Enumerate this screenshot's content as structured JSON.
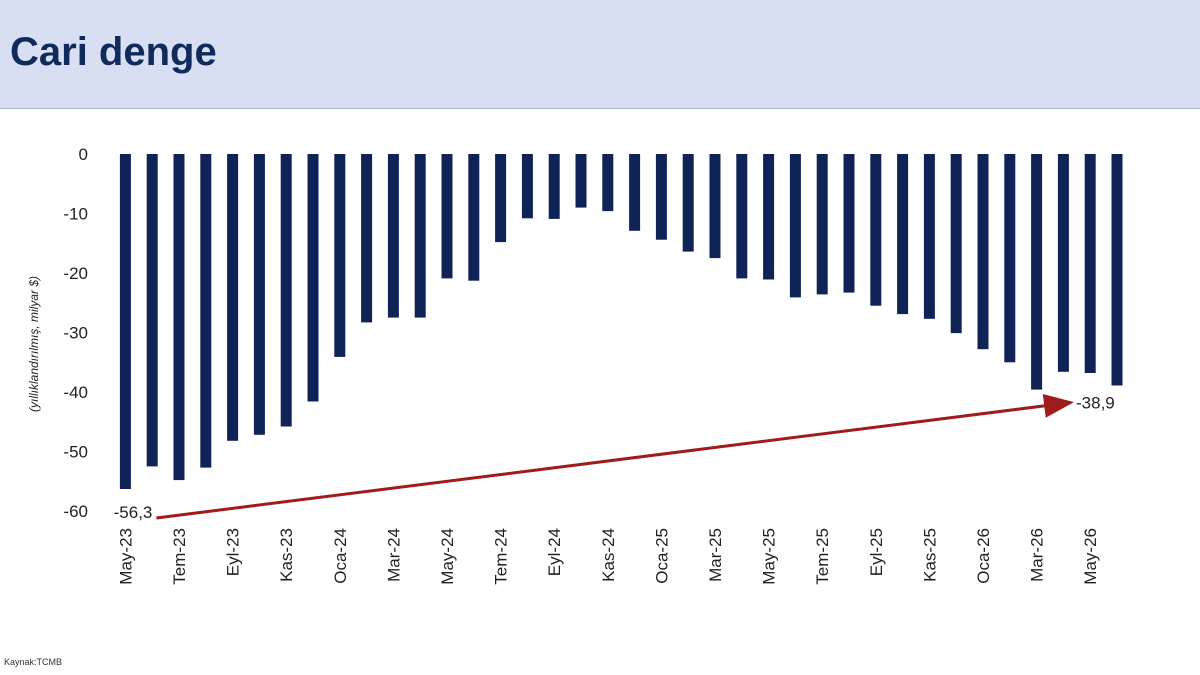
{
  "header": {
    "title": "Cari denge"
  },
  "source": "Kaynak:TCMB",
  "colors": {
    "bar": "#0f2357",
    "arrow": "#a01c1c",
    "header_bg": "#d9dff2",
    "title": "#102a5c"
  },
  "chart_data": {
    "type": "bar",
    "title": "",
    "xlabel": "",
    "ylabel": "(yıllıklandırılmış, milyar $)",
    "ylim": [
      -60,
      0
    ],
    "yticks": [
      0,
      -10,
      -20,
      -30,
      -40,
      -50,
      -60
    ],
    "categories": [
      "May-23",
      "Haz-23",
      "Tem-23",
      "Ağu-23",
      "Eyl-23",
      "Eki-23",
      "Kas-23",
      "Ara-23",
      "Oca-24",
      "Şub-24",
      "Mar-24",
      "Nis-24",
      "May-24",
      "Haz-24",
      "Tem-24",
      "Ağu-24",
      "Eyl-24",
      "Eki-24",
      "Kas-24",
      "Ara-24",
      "Oca-25",
      "Şub-25",
      "Mar-25",
      "Nis-25",
      "May-25",
      "Haz-25",
      "Tem-25",
      "Ağu-25",
      "Eyl-25",
      "Eki-25",
      "Kas-25",
      "Ara-25",
      "Oca-26",
      "Şub-26",
      "Mar-26",
      "Nis-26",
      "May-26",
      "Haz-26"
    ],
    "xtick_labels": [
      "May-23",
      "Tem-23",
      "Eyl-23",
      "Kas-23",
      "Oca-24",
      "Mar-24",
      "May-24",
      "Tem-24",
      "Eyl-24",
      "Kas-24",
      "Oca-25",
      "Mar-25",
      "May-25",
      "Tem-25",
      "Eyl-25",
      "Kas-25",
      "Oca-26",
      "Mar-26",
      "May-26"
    ],
    "values": [
      -56.3,
      -52.5,
      -54.8,
      -52.7,
      -48.2,
      -47.2,
      -45.8,
      -41.6,
      -34.1,
      -28.3,
      -27.5,
      -27.5,
      -20.9,
      -21.3,
      -14.8,
      -10.8,
      -10.9,
      -9.0,
      -9.6,
      -12.9,
      -14.4,
      -16.4,
      -17.5,
      -20.9,
      -21.1,
      -24.1,
      -23.6,
      -23.3,
      -25.5,
      -26.9,
      -27.7,
      -30.1,
      -32.8,
      -35.0,
      -39.6,
      -36.6,
      -36.8,
      -38.9
    ],
    "annotations": [
      {
        "text": "-56,3",
        "category": "May-23",
        "value": -56.3
      },
      {
        "text": "-38,9",
        "category": "Haz-26",
        "value": -38.9
      }
    ],
    "grid": false,
    "legend": "none"
  }
}
